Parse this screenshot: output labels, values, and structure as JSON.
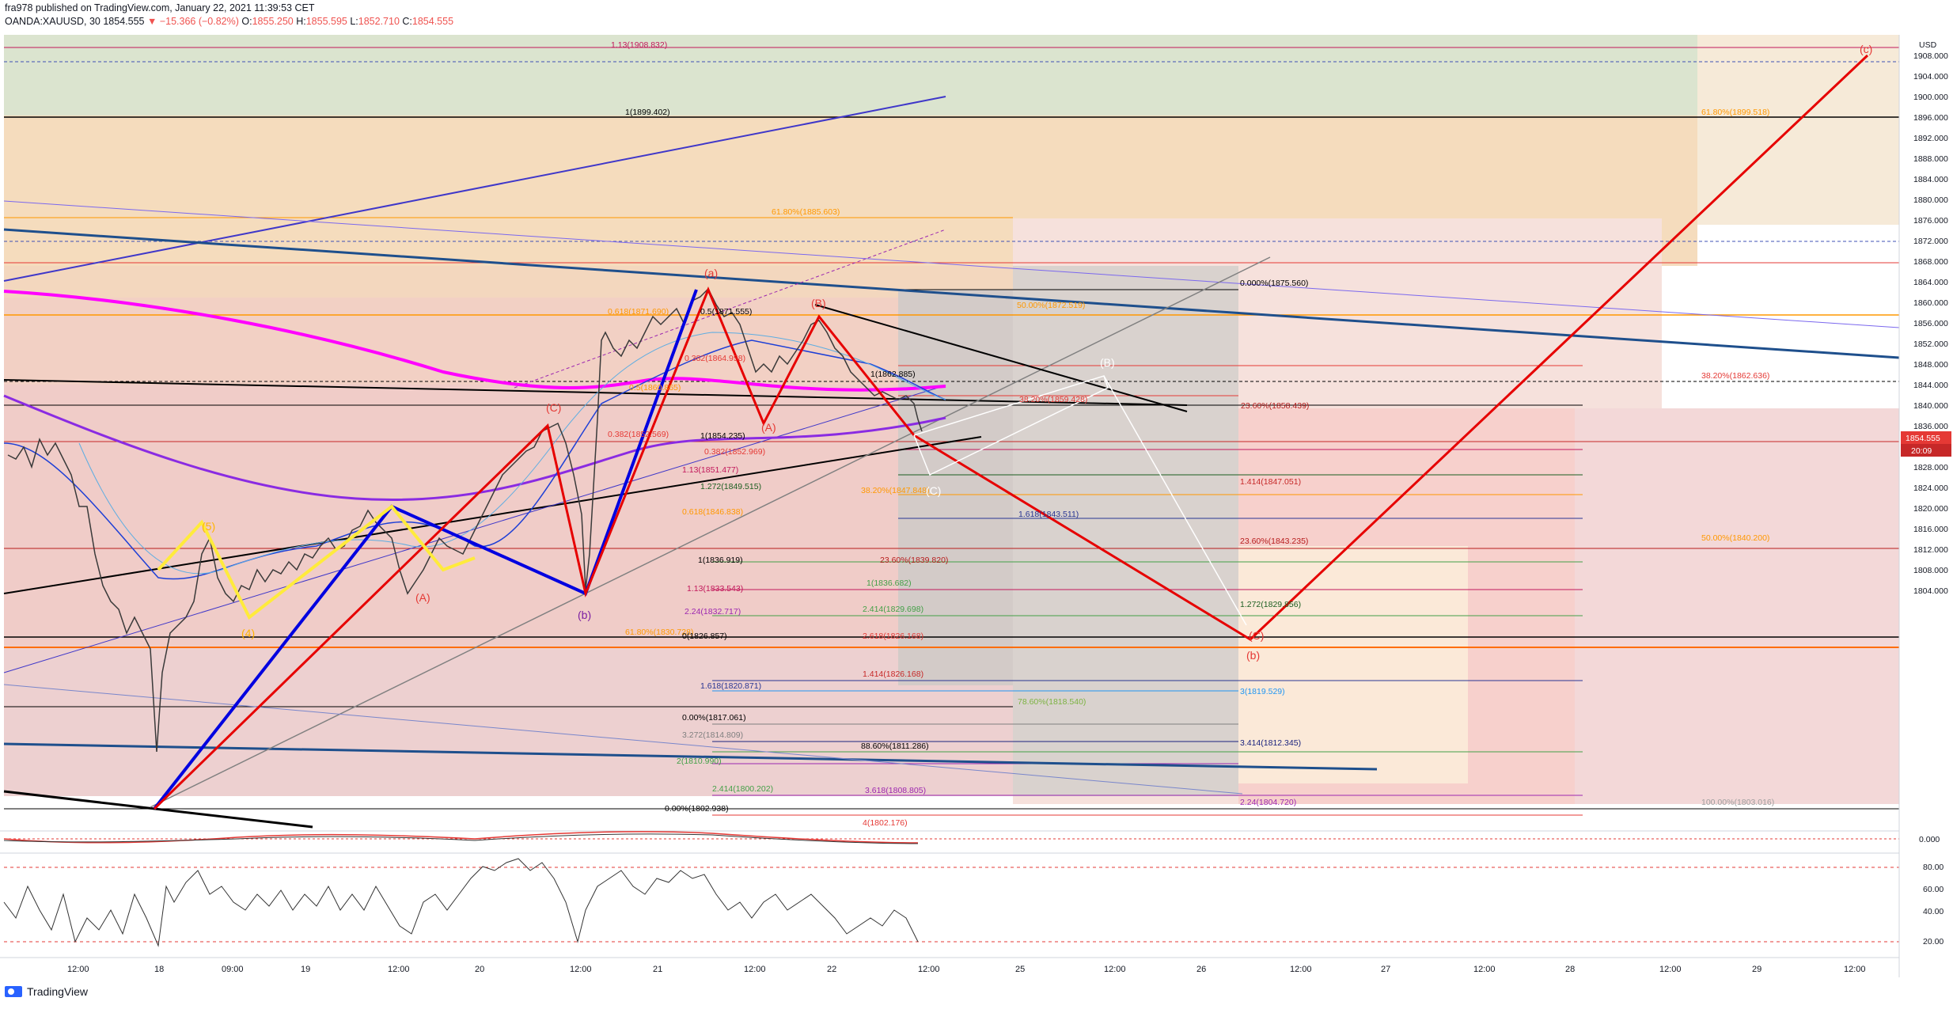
{
  "header": {
    "publisher": "fra978 published on TradingView.com, January 22, 2021 11:39:53 CET",
    "symbol": "OANDA:XAUUSD, 30",
    "last": "1854.555",
    "change": "▼ −15.366 (−0.82%)",
    "open_label": "O:",
    "open": "1855.250",
    "high_label": "H:",
    "high": "1855.595",
    "low_label": "L:",
    "low": "1852.710",
    "close_label": "C:",
    "close": "1854.555"
  },
  "branding": {
    "logo_text": "TradingView"
  },
  "price_axis": {
    "currency": "USD",
    "ticks": [
      "1908.000",
      "1904.000",
      "1900.000",
      "1896.000",
      "1892.000",
      "1888.000",
      "1884.000",
      "1880.000",
      "1876.000",
      "1872.000",
      "1868.000",
      "1864.000",
      "1860.000",
      "1856.000",
      "1852.000",
      "1848.000",
      "1844.000",
      "1840.000",
      "1836.000",
      "1832.000",
      "1828.000",
      "1824.000",
      "1820.000",
      "1816.000",
      "1812.000",
      "1808.000",
      "1804.000"
    ],
    "current_price": "1854.555",
    "countdown": "20:09"
  },
  "osc_axis": {
    "ticks": [
      "0.000"
    ]
  },
  "rsi_axis": {
    "ticks": [
      "80.00",
      "60.00",
      "40.00",
      "20.00"
    ]
  },
  "time_axis": {
    "labels": [
      "12:00",
      "18",
      "09:00",
      "19",
      "12:00",
      "20",
      "12:00",
      "21",
      "12:00",
      "22",
      "12:00",
      "25",
      "12:00",
      "26",
      "12:00",
      "27",
      "12:00",
      "28",
      "12:00",
      "29",
      "12:00"
    ]
  },
  "fib_labels": [
    {
      "text": "1.13(1908.832)",
      "color": "#c2185b"
    },
    {
      "text": "1(1899.402)",
      "color": "#000000"
    },
    {
      "text": "61.80%(1899.518)",
      "color": "#ff9800"
    },
    {
      "text": "61.80%(1885.603)",
      "color": "#ff9800"
    },
    {
      "text": "0.000%(1875.560)",
      "color": "#000000"
    },
    {
      "text": "50.00%(1872.519)",
      "color": "#ff9800"
    },
    {
      "text": "0.618(1871.690)",
      "color": "#ff9800"
    },
    {
      "text": "0.5(1871.555)",
      "color": "#000000"
    },
    {
      "text": "0.382(1864.958)",
      "color": "#e53935"
    },
    {
      "text": "1(1862.885)",
      "color": "#000000"
    },
    {
      "text": "38.20%(1862.636)",
      "color": "#e53935"
    },
    {
      "text": "0.5(1860.865)",
      "color": "#ff9800"
    },
    {
      "text": "38.20%(1859.428)",
      "color": "#e53935"
    },
    {
      "text": "23.60%(1858.439)",
      "color": "#b71c1c"
    },
    {
      "text": "0.382(1852.569)",
      "color": "#e53935"
    },
    {
      "text": "1(1854.235)",
      "color": "#000000"
    },
    {
      "text": "0.382(1852.969)",
      "color": "#e53935"
    },
    {
      "text": "1.13(1851.477)",
      "color": "#c2185b"
    },
    {
      "text": "1.272(1849.515)",
      "color": "#1b5e20"
    },
    {
      "text": "1.414(1847.051)",
      "color": "#c62828"
    },
    {
      "text": "38.20%(1847.848)",
      "color": "#ff9800"
    },
    {
      "text": "0.618(1846.838)",
      "color": "#ff9800"
    },
    {
      "text": "1.618(1843.511)",
      "color": "#283593"
    },
    {
      "text": "23.60%(1843.235)",
      "color": "#b71c1c"
    },
    {
      "text": "50.00%(1840.200)",
      "color": "#ff9800"
    },
    {
      "text": "23.60%(1839.820)",
      "color": "#b71c1c"
    },
    {
      "text": "1(1836.919)",
      "color": "#000000"
    },
    {
      "text": "1(1836.682)",
      "color": "#43a047"
    },
    {
      "text": "1.13(1833.543)",
      "color": "#c2185b"
    },
    {
      "text": "2.24(1832.717)",
      "color": "#9c27b0"
    },
    {
      "text": "2.414(1829.698)",
      "color": "#43a047"
    },
    {
      "text": "1.272(1829.856)",
      "color": "#1b5e20"
    },
    {
      "text": "61.80%(1830.728)",
      "color": "#ff9800"
    },
    {
      "text": "0(1826.857)",
      "color": "#000000"
    },
    {
      "text": "2.618(1826.168)",
      "color": "#e53935"
    },
    {
      "text": "1.414(1826.168)",
      "color": "#c62828"
    },
    {
      "text": "1.618(1820.871)",
      "color": "#283593"
    },
    {
      "text": "3(1819.529)",
      "color": "#2196f3"
    },
    {
      "text": "78.60%(1818.540)",
      "color": "#7cb342"
    },
    {
      "text": "0.00%(1817.061)",
      "color": "#000000"
    },
    {
      "text": "3.272(1814.809)",
      "color": "#808080"
    },
    {
      "text": "3.414(1812.345)",
      "color": "#1a237e"
    },
    {
      "text": "88.60%(1811.286)",
      "color": "#000000"
    },
    {
      "text": "2(1810.990)",
      "color": "#43a047"
    },
    {
      "text": "3.618(1808.805)",
      "color": "#9c27b0"
    },
    {
      "text": "2.24(1804.720)",
      "color": "#9c27b0"
    },
    {
      "text": "100.00%(1803.016)",
      "color": "#9e9e9e"
    },
    {
      "text": "0.00%(1802.938)",
      "color": "#000000"
    },
    {
      "text": "4(1802.176)",
      "color": "#e53935"
    },
    {
      "text": "2.414(1800.202)",
      "color": "#43a047"
    }
  ],
  "wave_labels": [
    {
      "text": "(a)",
      "color": "#e53935"
    },
    {
      "text": "(b)",
      "color": "#e53935"
    },
    {
      "text": "(c)",
      "color": "#e53935"
    },
    {
      "text": "(B)",
      "color": "#e53935"
    },
    {
      "text": "(A)",
      "color": "#e53935"
    },
    {
      "text": "(C)",
      "color": "#e53935"
    },
    {
      "text": "(b)",
      "color": "#7b1fa2"
    },
    {
      "text": "(A)",
      "color": "#e53935"
    },
    {
      "text": "(4)",
      "color": "#ffb300"
    },
    {
      "text": "(5)",
      "color": "#ffb300"
    },
    {
      "text": "(B)",
      "color": "#ffffff"
    },
    {
      "text": "(C)",
      "color": "#ffffff"
    },
    {
      "text": "(C)",
      "color": "#e53935"
    }
  ]
}
